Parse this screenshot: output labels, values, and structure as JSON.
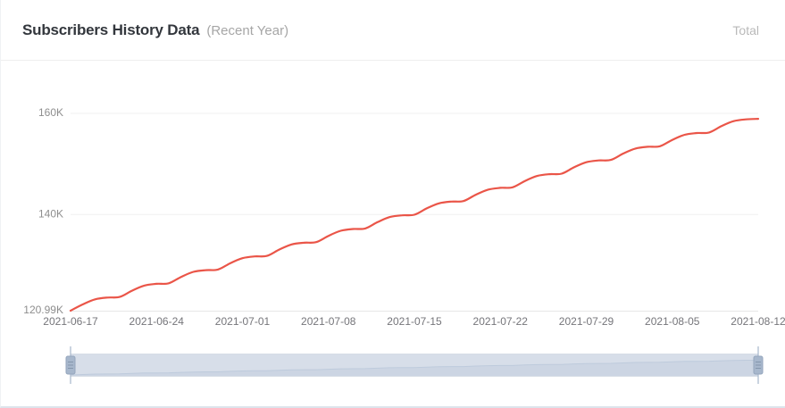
{
  "header": {
    "title": "Subscribers History Data",
    "subtitle": "(Recent Year)",
    "right_label": "Total"
  },
  "chart_data": {
    "type": "line",
    "title": "Subscribers History Data (Recent Year)",
    "series": [
      {
        "name": "Total",
        "values": [
          120990,
          122240,
          123240,
          123590,
          123700,
          124950,
          125950,
          126300,
          126410,
          127660,
          128660,
          129010,
          129120,
          130370,
          131370,
          131720,
          131830,
          133080,
          134080,
          134430,
          134540,
          135790,
          136790,
          137140,
          137250,
          138500,
          139500,
          139850,
          139960,
          141210,
          142210,
          142560,
          142670,
          143920,
          144920,
          145270,
          145380,
          146630,
          147630,
          147980,
          148090,
          149340,
          150340,
          150690,
          150800,
          152050,
          153050,
          153400,
          153510,
          154760,
          155760,
          156110,
          156220,
          157470,
          158470,
          158820,
          158930
        ]
      }
    ],
    "x": [
      "2021-06-17",
      "2021-06-18",
      "2021-06-19",
      "2021-06-20",
      "2021-06-21",
      "2021-06-22",
      "2021-06-23",
      "2021-06-24",
      "2021-06-25",
      "2021-06-26",
      "2021-06-27",
      "2021-06-28",
      "2021-06-29",
      "2021-06-30",
      "2021-07-01",
      "2021-07-02",
      "2021-07-03",
      "2021-07-04",
      "2021-07-05",
      "2021-07-06",
      "2021-07-07",
      "2021-07-08",
      "2021-07-09",
      "2021-07-10",
      "2021-07-11",
      "2021-07-12",
      "2021-07-13",
      "2021-07-14",
      "2021-07-15",
      "2021-07-16",
      "2021-07-17",
      "2021-07-18",
      "2021-07-19",
      "2021-07-20",
      "2021-07-21",
      "2021-07-22",
      "2021-07-23",
      "2021-07-24",
      "2021-07-25",
      "2021-07-26",
      "2021-07-27",
      "2021-07-28",
      "2021-07-29",
      "2021-07-30",
      "2021-07-31",
      "2021-08-01",
      "2021-08-02",
      "2021-08-03",
      "2021-08-04",
      "2021-08-05",
      "2021-08-06",
      "2021-08-07",
      "2021-08-08",
      "2021-08-09",
      "2021-08-10",
      "2021-08-11",
      "2021-08-12"
    ],
    "x_tick_day_indices": [
      0,
      7,
      14,
      21,
      28,
      35,
      42,
      49,
      56
    ],
    "x_tick_labels": [
      "2021-06-17",
      "2021-06-24",
      "2021-07-01",
      "2021-07-08",
      "2021-07-15",
      "2021-07-22",
      "2021-07-29",
      "2021-08-05",
      "2021-08-12"
    ],
    "y_ticks": [
      {
        "value": 120990,
        "label": "120.99K"
      },
      {
        "value": 140000,
        "label": "140K"
      },
      {
        "value": 160000,
        "label": "160K"
      }
    ],
    "ylim": [
      120990,
      160000
    ],
    "xlabel": "",
    "ylabel": "",
    "grid": true,
    "legend_visible": false,
    "datazoom": {
      "start_pct": 0,
      "end_pct": 100
    }
  },
  "colors": {
    "line": "#ea5548",
    "title_text": "#33373d",
    "subtitle_text": "#a6a6a6",
    "total_text": "#b9b9b9",
    "y_axis_label": "#8e8e8e",
    "x_axis_label": "#75757a",
    "grid_line": "#f0f0f0",
    "axis_line": "#e6e6e6",
    "slider_track": "#eef1f6",
    "slider_filler": "rgba(167,183,204,0.32)",
    "slider_shadow_fill": "#dde3ed",
    "slider_shadow_line": "#c9d4e4",
    "slider_border": "#d7dde6",
    "slider_handle_fill": "#a7b7cc",
    "slider_handle_stroke": "#94a6bd",
    "slider_handle_grip": "#8496ac",
    "slider_stem": "#a7b7cc"
  }
}
